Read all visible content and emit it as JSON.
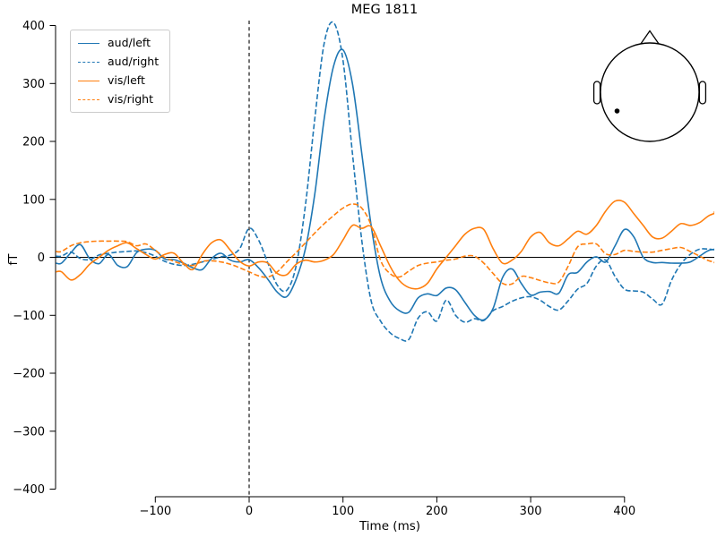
{
  "figure": {
    "background": "#ffffff",
    "text_color": "#000000"
  },
  "chart_data": {
    "type": "line",
    "title": "MEG 1811",
    "xlabel": "Time (ms)",
    "ylabel": "fT",
    "xlim": [
      -206,
      495
    ],
    "ylim": [
      -415,
      415
    ],
    "xticks": [
      -100,
      0,
      100,
      200,
      300,
      400
    ],
    "xtick_labels": [
      "−100",
      "0",
      "100",
      "200",
      "300",
      "400"
    ],
    "yticks": [
      -400,
      -300,
      -200,
      -100,
      0,
      100,
      200,
      300,
      400
    ],
    "ytick_labels": [
      "−400",
      "−300",
      "−200",
      "−100",
      "0",
      "100",
      "200",
      "300",
      "400"
    ],
    "grid": false,
    "legend_position": "upper left",
    "hline": {
      "y": 0,
      "style": "solid",
      "color": "#000000"
    },
    "vline": {
      "x": 0,
      "style": "dashed",
      "color": "#000000"
    },
    "x": [
      -200,
      -190,
      -180,
      -170,
      -160,
      -150,
      -140,
      -130,
      -120,
      -110,
      -100,
      -90,
      -80,
      -70,
      -60,
      -50,
      -40,
      -30,
      -20,
      -10,
      0,
      10,
      20,
      30,
      40,
      50,
      60,
      70,
      80,
      90,
      100,
      110,
      120,
      130,
      140,
      150,
      160,
      170,
      180,
      190,
      200,
      210,
      220,
      230,
      240,
      250,
      260,
      270,
      280,
      290,
      300,
      310,
      320,
      330,
      340,
      350,
      360,
      370,
      380,
      390,
      400,
      410,
      420,
      430,
      440,
      450,
      460,
      470,
      480,
      490,
      500
    ],
    "series": [
      {
        "name": "aud/left",
        "color": "#1f77b4",
        "dash": "solid",
        "values": [
          -10,
          8,
          22,
          -2,
          -11,
          5,
          -14,
          -16,
          8,
          14,
          12,
          -3,
          -4,
          -10,
          -18,
          -21,
          -2,
          7,
          -5,
          -8,
          -4,
          -18,
          -38,
          -60,
          -68,
          -38,
          15,
          110,
          240,
          330,
          358,
          300,
          180,
          55,
          -35,
          -75,
          -92,
          -95,
          -70,
          -63,
          -66,
          -53,
          -56,
          -78,
          -100,
          -108,
          -88,
          -35,
          -20,
          -45,
          -65,
          -60,
          -59,
          -62,
          -30,
          -26,
          -8,
          1,
          -8,
          20,
          48,
          35,
          0,
          -9,
          -9,
          -10,
          -10,
          -8,
          2,
          12,
          14
        ]
      },
      {
        "name": "aud/right",
        "color": "#1f77b4",
        "dash": "dashed",
        "values": [
          2,
          9,
          -2,
          -4,
          4,
          7,
          9,
          10,
          11,
          8,
          2,
          -7,
          -12,
          -14,
          -12,
          -8,
          -4,
          1,
          4,
          15,
          50,
          30,
          -10,
          -48,
          -57,
          -15,
          90,
          240,
          370,
          405,
          340,
          180,
          30,
          -75,
          -110,
          -130,
          -140,
          -142,
          -105,
          -94,
          -110,
          -74,
          -100,
          -112,
          -106,
          -109,
          -92,
          -85,
          -76,
          -70,
          -68,
          -74,
          -85,
          -91,
          -75,
          -55,
          -45,
          -15,
          -5,
          -33,
          -55,
          -58,
          -60,
          -72,
          -81,
          -40,
          -12,
          5,
          14,
          14,
          12
        ]
      },
      {
        "name": "vis/left",
        "color": "#ff7f0e",
        "dash": "solid",
        "values": [
          -25,
          -39,
          -30,
          -12,
          0,
          12,
          20,
          25,
          15,
          5,
          -3,
          5,
          7,
          -10,
          -21,
          5,
          25,
          30,
          12,
          -7,
          -15,
          -8,
          -10,
          -28,
          -30,
          -12,
          -5,
          -8,
          -5,
          5,
          30,
          55,
          50,
          53,
          20,
          -15,
          -40,
          -52,
          -54,
          -45,
          -20,
          0,
          20,
          40,
          50,
          48,
          15,
          -10,
          -5,
          10,
          35,
          43,
          25,
          20,
          32,
          45,
          40,
          55,
          80,
          97,
          95,
          75,
          55,
          35,
          33,
          45,
          58,
          55,
          60,
          72,
          78
        ]
      },
      {
        "name": "vis/right",
        "color": "#ff7f0e",
        "dash": "dashed",
        "values": [
          10,
          20,
          25,
          27,
          28,
          28,
          28,
          27,
          20,
          23,
          12,
          0,
          -7,
          -12,
          -14,
          -7,
          -6,
          -8,
          -12,
          -18,
          -25,
          -32,
          -34,
          -25,
          -8,
          8,
          25,
          42,
          58,
          72,
          85,
          92,
          85,
          55,
          -5,
          -28,
          -34,
          -24,
          -14,
          -10,
          -8,
          -5,
          -3,
          2,
          2,
          -10,
          -28,
          -45,
          -46,
          -33,
          -35,
          -40,
          -44,
          -43,
          -15,
          18,
          23,
          23,
          6,
          5,
          12,
          10,
          9,
          9,
          12,
          15,
          17,
          10,
          2,
          -6,
          -9
        ]
      }
    ],
    "inset": {
      "type": "head-outline-sensor-map",
      "sensor_dot_position": "left-posterior"
    }
  }
}
